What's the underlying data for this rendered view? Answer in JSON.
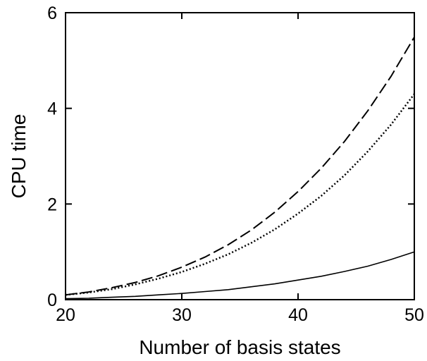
{
  "chart_data": {
    "type": "line",
    "title": "",
    "xlabel": "Number of basis states",
    "ylabel": "CPU time",
    "xlim": [
      20,
      50
    ],
    "ylim": [
      0,
      6
    ],
    "xticks": [
      "20",
      "30",
      "40",
      "50"
    ],
    "yticks": [
      "0",
      "2",
      "4",
      "6"
    ],
    "grid": false,
    "legend": "none",
    "series": [
      {
        "style": "dashed",
        "color": "#000000",
        "x": [
          20,
          22,
          24,
          26,
          28,
          30,
          32,
          34,
          36,
          38,
          40,
          42,
          44,
          46,
          48,
          50
        ],
        "y": [
          0.1,
          0.16,
          0.25,
          0.36,
          0.5,
          0.68,
          0.89,
          1.15,
          1.46,
          1.83,
          2.26,
          2.75,
          3.31,
          3.95,
          4.67,
          5.49
        ]
      },
      {
        "style": "dotted",
        "color": "#000000",
        "x": [
          20,
          22,
          24,
          26,
          28,
          30,
          32,
          34,
          36,
          38,
          40,
          42,
          44,
          46,
          48,
          50
        ],
        "y": [
          0.1,
          0.15,
          0.22,
          0.32,
          0.44,
          0.58,
          0.75,
          0.95,
          1.19,
          1.47,
          1.8,
          2.17,
          2.6,
          3.1,
          3.66,
          4.3
        ]
      },
      {
        "style": "solid",
        "color": "#000000",
        "x": [
          20,
          22,
          24,
          26,
          28,
          30,
          32,
          34,
          36,
          38,
          40,
          42,
          44,
          46,
          48,
          50
        ],
        "y": [
          0.02,
          0.03,
          0.05,
          0.07,
          0.1,
          0.13,
          0.17,
          0.21,
          0.27,
          0.33,
          0.41,
          0.49,
          0.59,
          0.7,
          0.84,
          1.0
        ]
      }
    ]
  }
}
